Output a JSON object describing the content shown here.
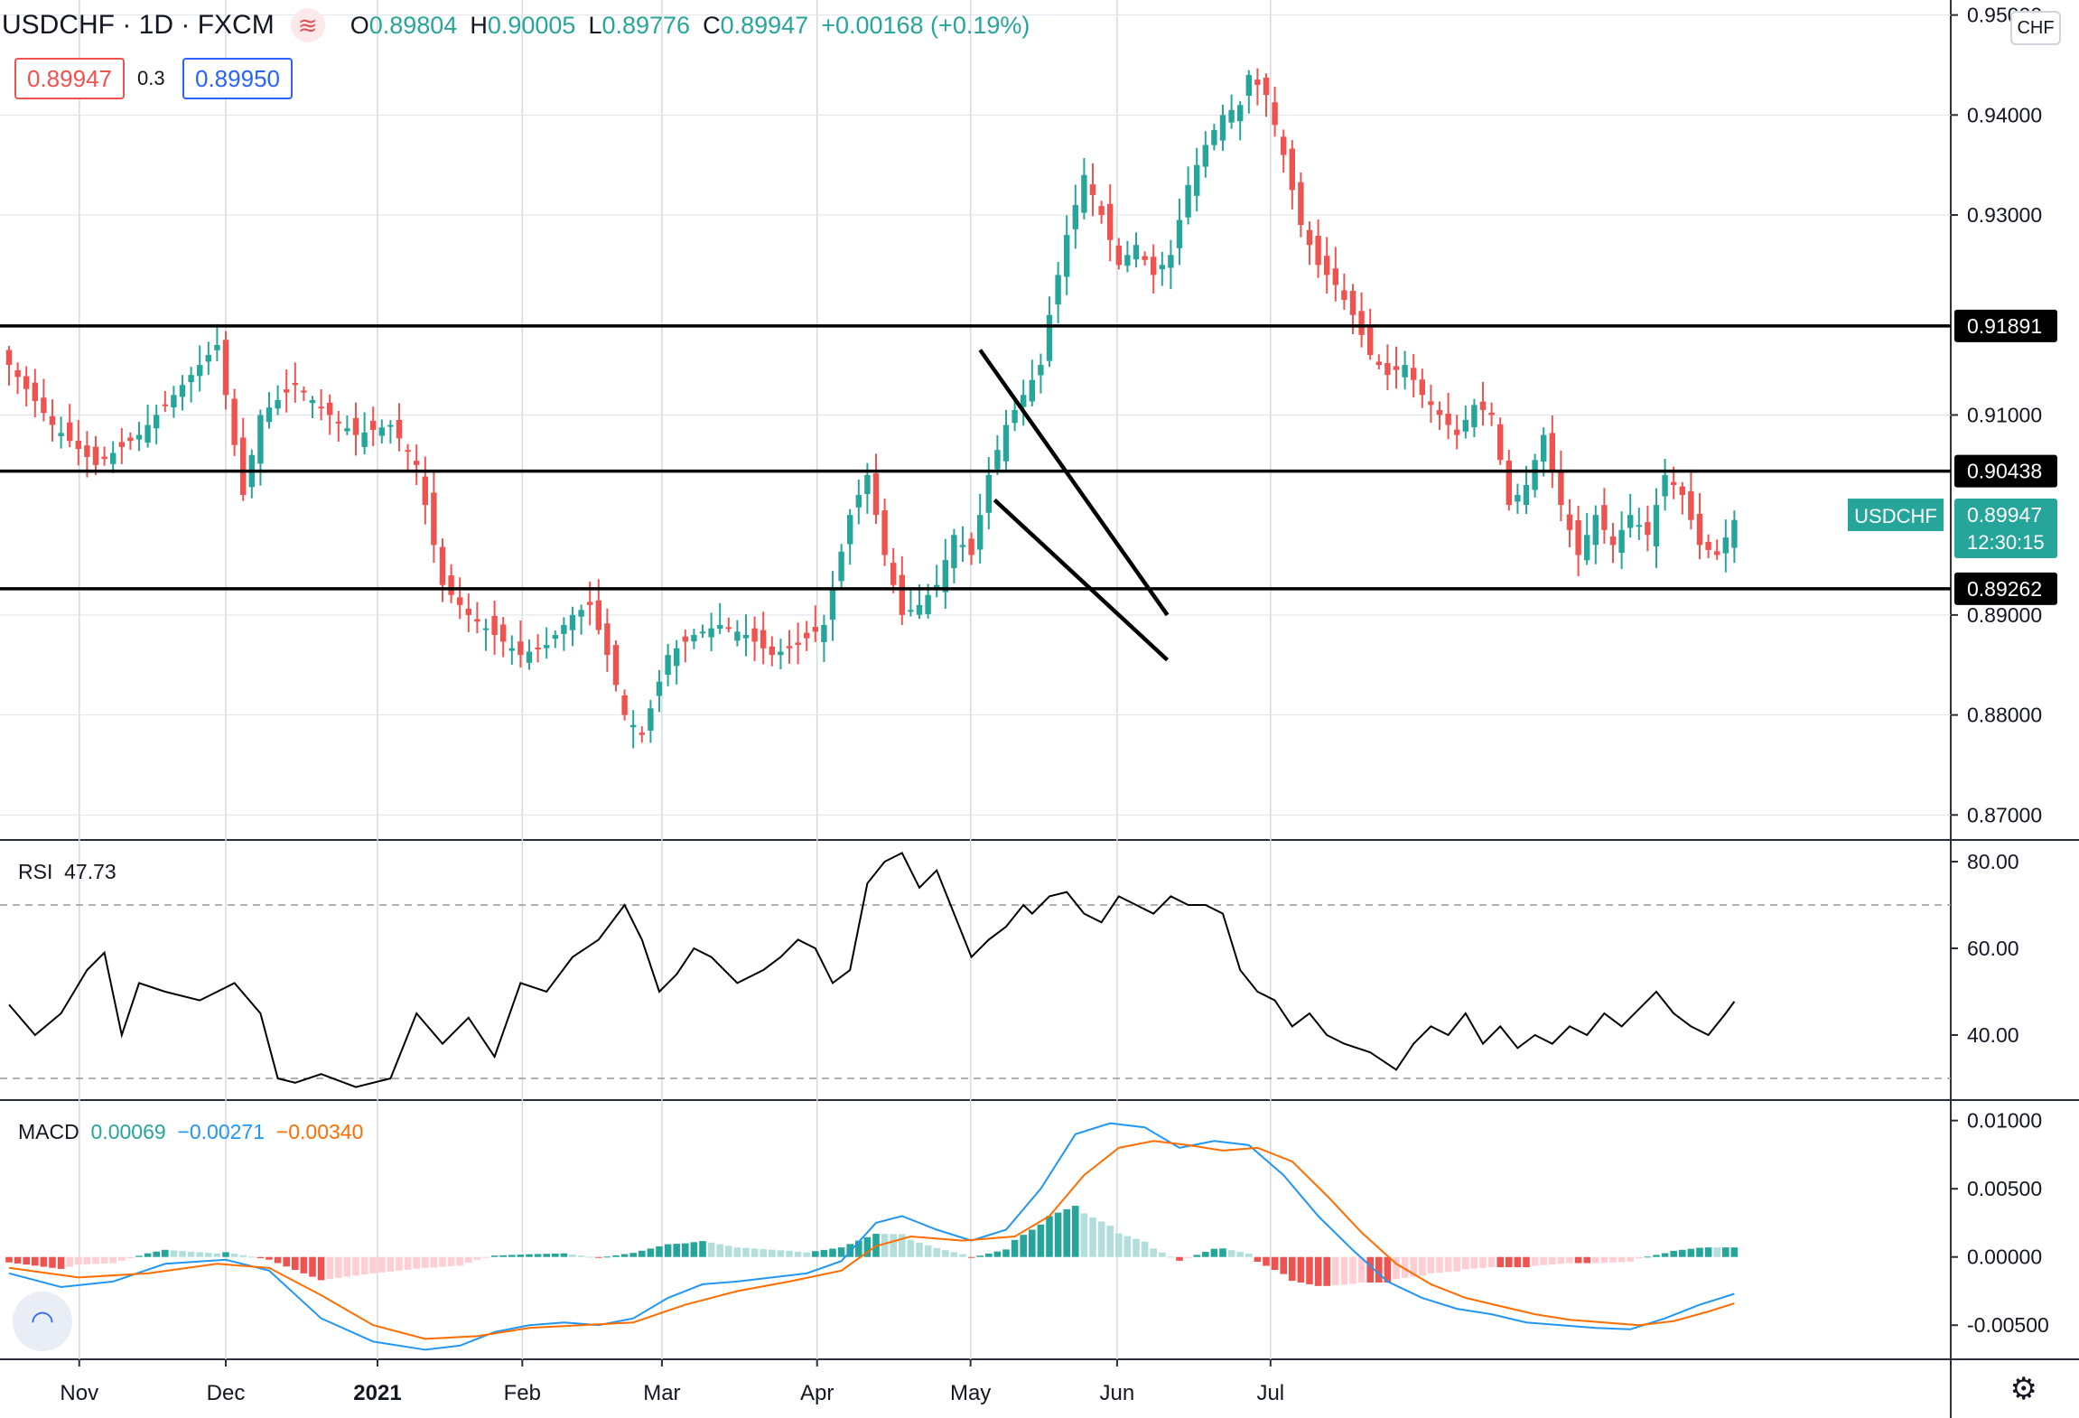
{
  "header": {
    "symbol": "USDCHF",
    "interval": "1D",
    "exchange": "FXCM",
    "open_label": "O",
    "open": "0.89804",
    "high_label": "H",
    "high": "0.90005",
    "low_label": "L",
    "low": "0.89776",
    "close_label": "C",
    "close": "0.89947",
    "change": "+0.00168 (+0.19%)",
    "bid": "0.89947",
    "spread": "0.3",
    "ask": "0.89950",
    "currency_button": "CHF",
    "logo_icon": "≋"
  },
  "rsi_label": {
    "name": "RSI",
    "value": "47.73"
  },
  "macd_label": {
    "name": "MACD",
    "hist": "0.00069",
    "macd": "−0.00271",
    "signal": "−0.00340"
  },
  "colors": {
    "up": "#26a69a",
    "down": "#ef5350",
    "macd": "#2196f3",
    "signal": "#ff6d00",
    "hist_up": "#26a69a",
    "hist_up_light": "#b2dfdb",
    "hist_down": "#ef5350",
    "hist_down_light": "#ffcdd2"
  },
  "chart_data": [
    {
      "type": "candlestick",
      "title": "USDCHF, 1D, FXCM",
      "x_labels": [
        "Nov",
        "Dec",
        "2021",
        "Feb",
        "Mar",
        "Apr",
        "May",
        "Jun",
        "Jul"
      ],
      "ylim": [
        0.8675,
        0.9515
      ],
      "y_ticks": [
        "0.95000",
        "0.94000",
        "0.93000",
        "0.91000",
        "0.89000",
        "0.88000",
        "0.87000"
      ],
      "horizontal_levels": [
        {
          "value": 0.91891,
          "label": "0.91891"
        },
        {
          "value": 0.90438,
          "label": "0.90438"
        },
        {
          "value": 0.89262,
          "label": "0.89262"
        }
      ],
      "current_price": {
        "symbol": "USDCHF",
        "value": "0.89947",
        "countdown": "12:30:15"
      },
      "trendlines": [
        {
          "from": {
            "date": "2021-05-03",
            "price": 0.9165
          },
          "to": {
            "date": "2021-06-11",
            "price": 0.89
          }
        },
        {
          "from": {
            "date": "2021-05-06",
            "price": 0.9015
          },
          "to": {
            "date": "2021-06-11",
            "price": 0.8855
          }
        }
      ],
      "close_points": [
        [
          0,
          0.915
        ],
        [
          5,
          0.909
        ],
        [
          10,
          0.905
        ],
        [
          15,
          0.908
        ],
        [
          19,
          0.912
        ],
        [
          22,
          0.915
        ],
        [
          24,
          0.917
        ],
        [
          27,
          0.902
        ],
        [
          29,
          0.91
        ],
        [
          33,
          0.913
        ],
        [
          37,
          0.91
        ],
        [
          40,
          0.908
        ],
        [
          44,
          0.909
        ],
        [
          47,
          0.905
        ],
        [
          50,
          0.893
        ],
        [
          53,
          0.89
        ],
        [
          56,
          0.888
        ],
        [
          59,
          0.886
        ],
        [
          62,
          0.887
        ],
        [
          65,
          0.89
        ],
        [
          67,
          0.891
        ],
        [
          69,
          0.886
        ],
        [
          71,
          0.88
        ],
        [
          73,
          0.878
        ],
        [
          76,
          0.886
        ],
        [
          79,
          0.888
        ],
        [
          82,
          0.889
        ],
        [
          85,
          0.888
        ],
        [
          88,
          0.886
        ],
        [
          91,
          0.887
        ],
        [
          94,
          0.889
        ],
        [
          97,
          0.9
        ],
        [
          99,
          0.904
        ],
        [
          101,
          0.896
        ],
        [
          103,
          0.89
        ],
        [
          105,
          0.891
        ],
        [
          107,
          0.893
        ],
        [
          109,
          0.898
        ],
        [
          111,
          0.896
        ],
        [
          113,
          0.904
        ],
        [
          115,
          0.909
        ],
        [
          117,
          0.912
        ],
        [
          119,
          0.915
        ],
        [
          120,
          0.92
        ],
        [
          122,
          0.928
        ],
        [
          124,
          0.934
        ],
        [
          126,
          0.93
        ],
        [
          128,
          0.925
        ],
        [
          130,
          0.927
        ],
        [
          132,
          0.924
        ],
        [
          134,
          0.926
        ],
        [
          136,
          0.933
        ],
        [
          138,
          0.937
        ],
        [
          140,
          0.94
        ],
        [
          142,
          0.941
        ],
        [
          143,
          0.944
        ],
        [
          145,
          0.942
        ],
        [
          147,
          0.936
        ],
        [
          149,
          0.929
        ],
        [
          151,
          0.925
        ],
        [
          153,
          0.923
        ],
        [
          155,
          0.92
        ],
        [
          157,
          0.916
        ],
        [
          159,
          0.914
        ],
        [
          161,
          0.915
        ],
        [
          163,
          0.912
        ],
        [
          165,
          0.91
        ],
        [
          167,
          0.908
        ],
        [
          169,
          0.911
        ],
        [
          171,
          0.91
        ],
        [
          173,
          0.901
        ],
        [
          175,
          0.903
        ],
        [
          177,
          0.908
        ],
        [
          179,
          0.901
        ],
        [
          181,
          0.896
        ],
        [
          183,
          0.9
        ],
        [
          185,
          0.897
        ],
        [
          187,
          0.9
        ],
        [
          189,
          0.898
        ],
        [
          191,
          0.904
        ],
        [
          193,
          0.902
        ],
        [
          195,
          0.897
        ],
        [
          197,
          0.896
        ],
        [
          199,
          0.8995
        ]
      ]
    },
    {
      "type": "line",
      "title": "RSI",
      "ylim": [
        25,
        85
      ],
      "y_ticks": [
        "80.00",
        "60.00",
        "40.00"
      ],
      "bands": [
        70,
        30
      ],
      "series": [
        {
          "name": "RSI",
          "points": [
            [
              0,
              47
            ],
            [
              3,
              40
            ],
            [
              6,
              45
            ],
            [
              9,
              55
            ],
            [
              11,
              59
            ],
            [
              13,
              40
            ],
            [
              15,
              52
            ],
            [
              18,
              50
            ],
            [
              22,
              48
            ],
            [
              26,
              52
            ],
            [
              29,
              45
            ],
            [
              31,
              30
            ],
            [
              33,
              29
            ],
            [
              36,
              31
            ],
            [
              40,
              28
            ],
            [
              44,
              30
            ],
            [
              47,
              45
            ],
            [
              50,
              38
            ],
            [
              53,
              44
            ],
            [
              56,
              35
            ],
            [
              59,
              52
            ],
            [
              62,
              50
            ],
            [
              65,
              58
            ],
            [
              68,
              62
            ],
            [
              71,
              70
            ],
            [
              73,
              62
            ],
            [
              75,
              50
            ],
            [
              77,
              54
            ],
            [
              79,
              60
            ],
            [
              81,
              58
            ],
            [
              84,
              52
            ],
            [
              87,
              55
            ],
            [
              89,
              58
            ],
            [
              91,
              62
            ],
            [
              93,
              60
            ],
            [
              95,
              52
            ],
            [
              97,
              55
            ],
            [
              99,
              75
            ],
            [
              101,
              80
            ],
            [
              103,
              82
            ],
            [
              105,
              74
            ],
            [
              107,
              78
            ],
            [
              109,
              68
            ],
            [
              111,
              58
            ],
            [
              113,
              62
            ],
            [
              115,
              65
            ],
            [
              117,
              70
            ],
            [
              118,
              68
            ],
            [
              120,
              72
            ],
            [
              122,
              73
            ],
            [
              124,
              68
            ],
            [
              126,
              66
            ],
            [
              128,
              72
            ],
            [
              130,
              70
            ],
            [
              132,
              68
            ],
            [
              134,
              72
            ],
            [
              136,
              70
            ],
            [
              138,
              70
            ],
            [
              140,
              68
            ],
            [
              142,
              55
            ],
            [
              144,
              50
            ],
            [
              146,
              48
            ],
            [
              148,
              42
            ],
            [
              150,
              45
            ],
            [
              152,
              40
            ],
            [
              154,
              38
            ],
            [
              157,
              36
            ],
            [
              160,
              32
            ],
            [
              162,
              38
            ],
            [
              164,
              42
            ],
            [
              166,
              40
            ],
            [
              168,
              45
            ],
            [
              170,
              38
            ],
            [
              172,
              42
            ],
            [
              174,
              37
            ],
            [
              176,
              40
            ],
            [
              178,
              38
            ],
            [
              180,
              42
            ],
            [
              182,
              40
            ],
            [
              184,
              45
            ],
            [
              186,
              42
            ],
            [
              188,
              46
            ],
            [
              190,
              50
            ],
            [
              192,
              45
            ],
            [
              194,
              42
            ],
            [
              196,
              40
            ],
            [
              198,
              45
            ],
            [
              199,
              47.73
            ]
          ]
        }
      ]
    },
    {
      "type": "macd",
      "title": "MACD",
      "ylim": [
        -0.0075,
        0.0115
      ],
      "y_ticks": [
        "0.01000",
        "0.00500",
        "0.00000",
        "-0.00500"
      ],
      "series": [
        {
          "name": "MACD",
          "points": [
            [
              0,
              -0.0012
            ],
            [
              6,
              -0.0022
            ],
            [
              12,
              -0.0018
            ],
            [
              18,
              -0.0005
            ],
            [
              25,
              -0.0002
            ],
            [
              30,
              -0.001
            ],
            [
              36,
              -0.0045
            ],
            [
              42,
              -0.0062
            ],
            [
              48,
              -0.0068
            ],
            [
              52,
              -0.0065
            ],
            [
              56,
              -0.0055
            ],
            [
              60,
              -0.005
            ],
            [
              64,
              -0.0048
            ],
            [
              68,
              -0.005
            ],
            [
              72,
              -0.0045
            ],
            [
              76,
              -0.003
            ],
            [
              80,
              -0.002
            ],
            [
              84,
              -0.0018
            ],
            [
              88,
              -0.0015
            ],
            [
              92,
              -0.0012
            ],
            [
              96,
              -0.0003
            ],
            [
              100,
              0.0025
            ],
            [
              103,
              0.003
            ],
            [
              107,
              0.002
            ],
            [
              111,
              0.0012
            ],
            [
              115,
              0.002
            ],
            [
              119,
              0.005
            ],
            [
              123,
              0.009
            ],
            [
              127,
              0.0098
            ],
            [
              131,
              0.0095
            ],
            [
              135,
              0.008
            ],
            [
              139,
              0.0085
            ],
            [
              143,
              0.0082
            ],
            [
              147,
              0.006
            ],
            [
              151,
              0.003
            ],
            [
              155,
              0.0005
            ],
            [
              159,
              -0.0018
            ],
            [
              163,
              -0.003
            ],
            [
              167,
              -0.0038
            ],
            [
              171,
              -0.0042
            ],
            [
              175,
              -0.0048
            ],
            [
              179,
              -0.005
            ],
            [
              183,
              -0.0052
            ],
            [
              187,
              -0.0053
            ],
            [
              191,
              -0.0045
            ],
            [
              195,
              -0.0035
            ],
            [
              199,
              -0.0027
            ]
          ]
        },
        {
          "name": "Signal",
          "points": [
            [
              0,
              -0.0008
            ],
            [
              8,
              -0.0015
            ],
            [
              16,
              -0.0012
            ],
            [
              24,
              -0.0005
            ],
            [
              30,
              -0.0008
            ],
            [
              36,
              -0.0028
            ],
            [
              42,
              -0.005
            ],
            [
              48,
              -0.006
            ],
            [
              54,
              -0.0058
            ],
            [
              60,
              -0.0052
            ],
            [
              66,
              -0.005
            ],
            [
              72,
              -0.0048
            ],
            [
              78,
              -0.0035
            ],
            [
              84,
              -0.0025
            ],
            [
              90,
              -0.0018
            ],
            [
              96,
              -0.001
            ],
            [
              100,
              0.0008
            ],
            [
              104,
              0.0015
            ],
            [
              110,
              0.0012
            ],
            [
              116,
              0.0015
            ],
            [
              120,
              0.003
            ],
            [
              124,
              0.006
            ],
            [
              128,
              0.008
            ],
            [
              132,
              0.0085
            ],
            [
              136,
              0.0082
            ],
            [
              140,
              0.0078
            ],
            [
              144,
              0.008
            ],
            [
              148,
              0.007
            ],
            [
              152,
              0.0045
            ],
            [
              156,
              0.0018
            ],
            [
              160,
              -0.0005
            ],
            [
              164,
              -0.002
            ],
            [
              168,
              -0.003
            ],
            [
              172,
              -0.0036
            ],
            [
              176,
              -0.0042
            ],
            [
              180,
              -0.0046
            ],
            [
              184,
              -0.0048
            ],
            [
              188,
              -0.005
            ],
            [
              192,
              -0.0047
            ],
            [
              196,
              -0.004
            ],
            [
              199,
              -0.0034
            ]
          ]
        }
      ]
    }
  ]
}
